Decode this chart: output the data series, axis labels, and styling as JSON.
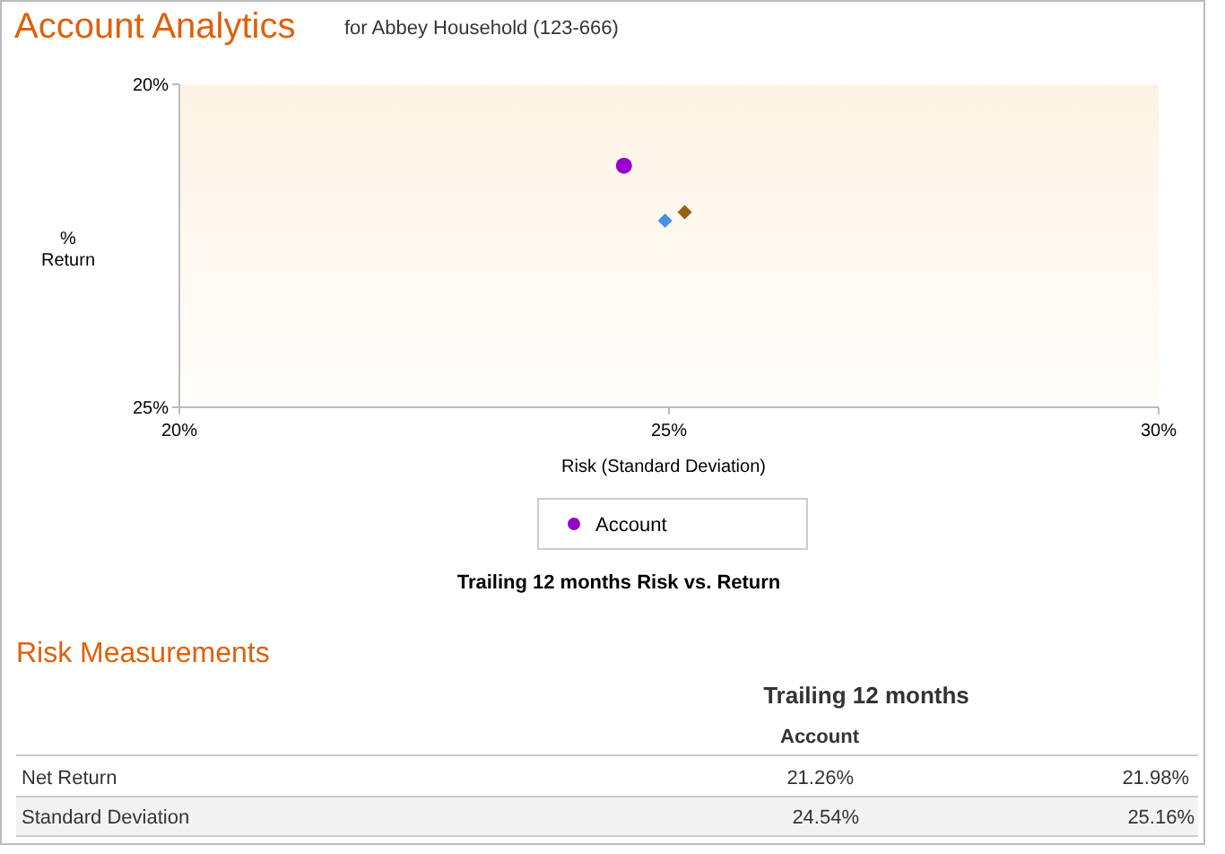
{
  "chart_data": {
    "type": "scatter",
    "title": "Account Analytics",
    "subtitle": "for Abbey Household (123-666)",
    "xlabel": "Risk (Standard Deviation)",
    "ylabel": "%\nReturn",
    "xlim": [
      20,
      30
    ],
    "xticks": [
      {
        "value": 20,
        "label": "20%"
      },
      {
        "value": 25,
        "label": "25%"
      },
      {
        "value": 30,
        "label": "30%"
      }
    ],
    "ylim": [
      25,
      20
    ],
    "yticks": [
      {
        "value": 20,
        "label": "20%"
      },
      {
        "value": 25,
        "label": "25%"
      }
    ],
    "grid": false,
    "legend": "bottom",
    "series": [
      {
        "name": "Account",
        "color": "#9900cc",
        "marker": "circle",
        "x": [
          24.54
        ],
        "values": [
          21.26
        ]
      },
      {
        "color": "#4a8ee8",
        "marker": "diamond",
        "x": [
          24.96
        ],
        "values": [
          22.11
        ]
      },
      {
        "color": "#9a6010",
        "marker": "diamond",
        "x": [
          25.16
        ],
        "values": [
          21.98
        ]
      }
    ],
    "annotations": [
      "Trailing 12 months Risk vs. Return",
      "Risk Measurements",
      "Trailing 12 months",
      "Account",
      "Net Return",
      "21.26%",
      "21.98%",
      "Standard Deviation",
      "24.54%",
      "25.16%"
    ]
  }
}
